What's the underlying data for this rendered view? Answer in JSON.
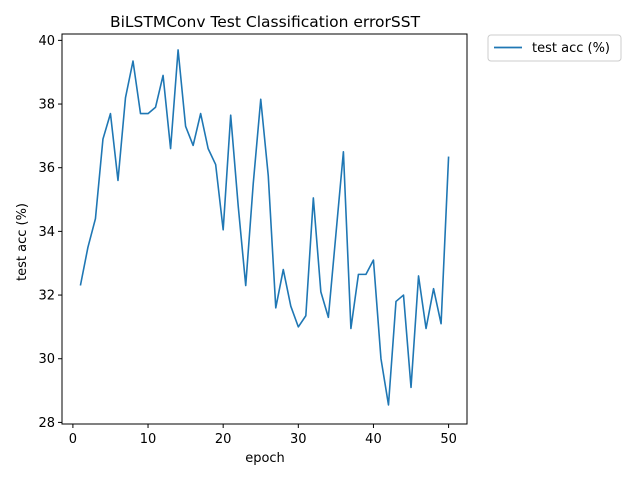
{
  "chart_data": {
    "type": "line",
    "title": "BiLSTMConv Test Classification errorSST",
    "xlabel": "epoch",
    "ylabel": "test acc (%)",
    "xlim": [
      -1.45,
      52.45
    ],
    "ylim": [
      27.95,
      40.2
    ],
    "xticks": [
      0,
      10,
      20,
      30,
      40,
      50
    ],
    "yticks": [
      28,
      30,
      32,
      34,
      36,
      38,
      40
    ],
    "grid": false,
    "legend_position": "outside-top-right",
    "series": [
      {
        "name": "test acc (%)",
        "color": "#1f77b4",
        "x": [
          1,
          2,
          3,
          4,
          5,
          6,
          7,
          8,
          9,
          10,
          11,
          12,
          13,
          14,
          15,
          16,
          17,
          18,
          19,
          20,
          21,
          22,
          23,
          24,
          25,
          26,
          27,
          28,
          29,
          30,
          31,
          32,
          33,
          34,
          35,
          36,
          37,
          38,
          39,
          40,
          41,
          42,
          43,
          44,
          45,
          46,
          47,
          48,
          49,
          50
        ],
        "y": [
          32.3,
          33.5,
          34.4,
          36.9,
          37.7,
          35.6,
          38.2,
          39.35,
          37.7,
          37.7,
          37.9,
          38.9,
          36.6,
          39.7,
          37.3,
          36.7,
          37.7,
          36.6,
          36.1,
          34.05,
          37.65,
          34.8,
          32.3,
          35.5,
          38.15,
          35.75,
          31.6,
          32.8,
          31.65,
          31.0,
          31.35,
          35.05,
          32.1,
          31.3,
          33.9,
          36.5,
          30.95,
          32.65,
          32.65,
          33.1,
          30.0,
          28.55,
          31.8,
          32.0,
          29.1,
          32.6,
          30.95,
          32.2,
          31.1,
          36.35
        ]
      }
    ]
  }
}
